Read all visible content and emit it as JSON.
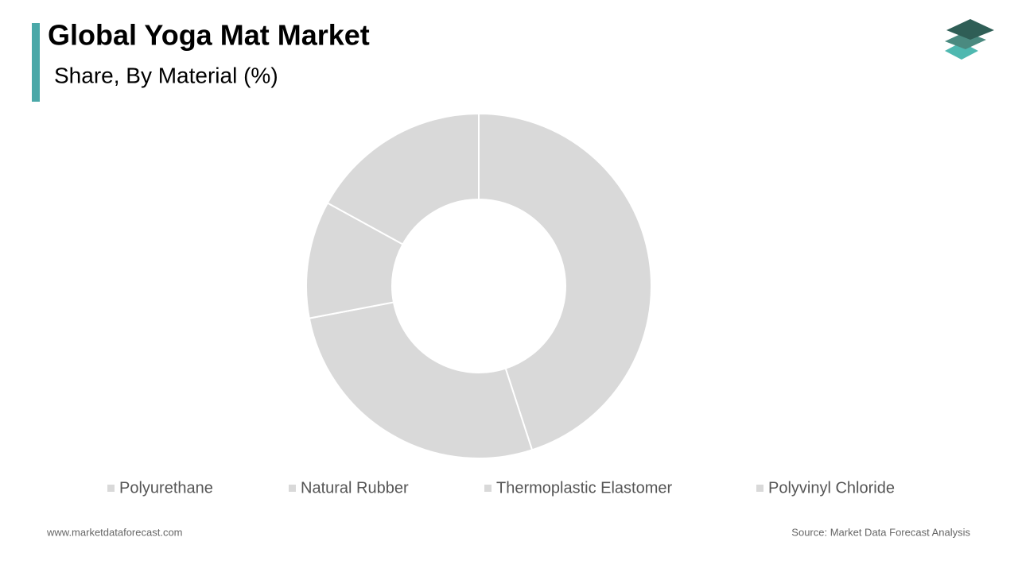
{
  "chart_data": {
    "type": "donut",
    "title": "Global Yoga Mat Market",
    "subtitle": "Share, By Material (%)",
    "categories": [
      "Polyurethane",
      "Natural Rubber",
      "Thermoplastic Elastomer",
      "Polyvinyl Chloride"
    ],
    "values": [
      45,
      27,
      11,
      17
    ],
    "color": "#d9d9d9",
    "legend": "bottom"
  },
  "footer": {
    "website": "www.marketdataforecast.com",
    "source": "Source: Market Data Forecast Analysis"
  }
}
